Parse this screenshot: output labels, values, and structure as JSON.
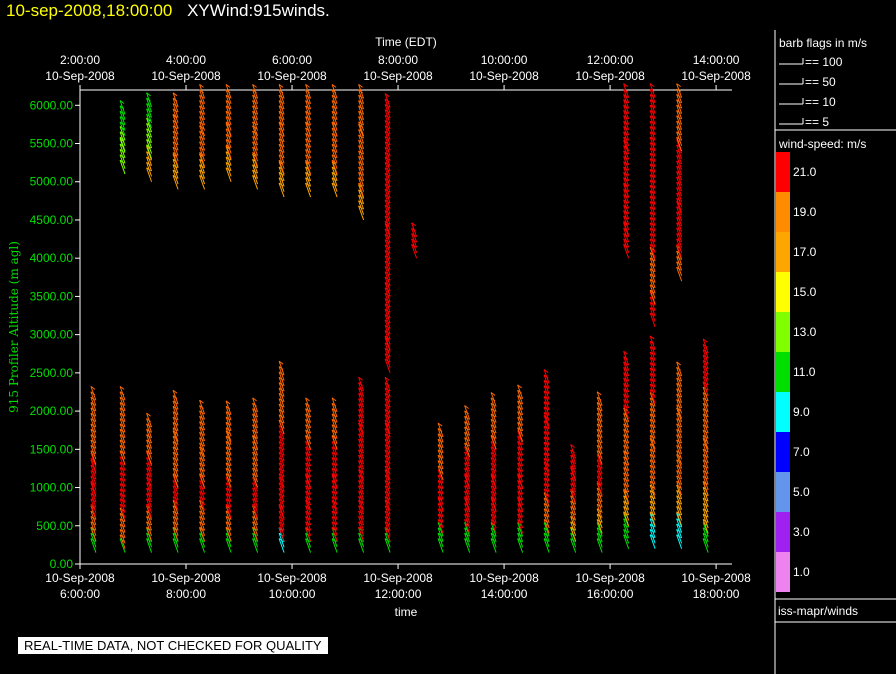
{
  "header": {
    "timestamp": "10-sep-2008,18:00:00",
    "plot_name": "XYWind:915winds."
  },
  "notice": "REAL-TIME DATA, NOT CHECKED FOR QUALITY",
  "legend": {
    "barb_title": "barb flags in m/s",
    "barb_flags": [
      "== 100",
      "== 50",
      "== 10",
      "== 5"
    ],
    "speed_title": "wind-speed: m/s",
    "speed_labels": [
      "21.0",
      "19.0",
      "17.0",
      "15.0",
      "13.0",
      "11.0",
      "9.0",
      "7.0",
      "5.0",
      "3.0",
      "1.0"
    ],
    "speed_colors": [
      "#ff0000",
      "#ff8c00",
      "#ffa500",
      "#ffff00",
      "#7fff00",
      "#00e000",
      "#00ffff",
      "#0000ff",
      "#6495ed",
      "#a020f0",
      "#ee82ee"
    ],
    "footer": "iss-mapr/winds"
  },
  "chart_data": {
    "type": "scatter",
    "title": "",
    "xlabel_top": "Time (EDT)",
    "xlabel_bottom": "time",
    "ylabel": "915 Profiler Altitude (m agl)",
    "ylim": [
      0,
      6200
    ],
    "yticks": [
      "0.00",
      "500.00",
      "1000.00",
      "1500.00",
      "2000.00",
      "2500.00",
      "3000.00",
      "3500.00",
      "4000.00",
      "4500.00",
      "5000.00",
      "5500.00",
      "6000.00"
    ],
    "xticks_bottom": [
      {
        "date": "10-Sep-2008",
        "time": "6:00:00"
      },
      {
        "date": "10-Sep-2008",
        "time": "8:00:00"
      },
      {
        "date": "10-Sep-2008",
        "time": "10:00:00"
      },
      {
        "date": "10-Sep-2008",
        "time": "12:00:00"
      },
      {
        "date": "10-Sep-2008",
        "time": "14:00:00"
      },
      {
        "date": "10-Sep-2008",
        "time": "16:00:00"
      },
      {
        "date": "10-Sep-2008",
        "time": "18:00:00"
      }
    ],
    "xticks_top": [
      {
        "time": "2:00:00",
        "date": "10-Sep-2008"
      },
      {
        "time": "4:00:00",
        "date": "10-Sep-2008"
      },
      {
        "time": "6:00:00",
        "date": "10-Sep-2008"
      },
      {
        "time": "8:00:00",
        "date": "10-Sep-2008"
      },
      {
        "time": "10:00:00",
        "date": "10-Sep-2008"
      },
      {
        "time": "12:00:00",
        "date": "10-Sep-2008"
      },
      {
        "time": "14:00:00",
        "date": "10-Sep-2008"
      }
    ],
    "series": [
      {
        "time_hr": 6.3,
        "lo": [
          [
            "260",
            2200,
            19
          ],
          [
            "60",
            1300,
            21
          ],
          [
            "100",
            1200,
            21
          ],
          [
            "100",
            900,
            21
          ],
          [
            "100",
            600,
            19
          ],
          [
            "100",
            300,
            11
          ]
        ],
        "upper": []
      },
      {
        "time_hr": 6.85,
        "lo": [
          [
            "260",
            2200,
            19
          ],
          [
            "60",
            1300,
            21
          ],
          [
            "100",
            800,
            21
          ],
          [
            "100",
            600,
            19
          ],
          [
            "100",
            200,
            11
          ]
        ],
        "upper": [
          [
            "0",
            5900,
            11
          ],
          [
            "100",
            5600,
            13
          ],
          [
            "100",
            5400,
            13
          ]
        ]
      },
      {
        "time_hr": 7.35,
        "lo": [
          [
            "260",
            1800,
            19
          ],
          [
            "60",
            1300,
            21
          ],
          [
            "100",
            1000,
            21
          ],
          [
            "100",
            600,
            19
          ],
          [
            "100",
            300,
            11
          ]
        ],
        "upper": [
          [
            "0",
            6000,
            11
          ],
          [
            "100",
            5700,
            13
          ],
          [
            "100",
            5300,
            17
          ]
        ]
      },
      {
        "time_hr": 7.85,
        "lo": [
          [
            "260",
            2100,
            19
          ],
          [
            "60",
            1600,
            19
          ],
          [
            "100",
            1000,
            21
          ],
          [
            "100",
            700,
            19
          ],
          [
            "100",
            300,
            11
          ]
        ],
        "upper": [
          [
            "0",
            6000,
            19
          ],
          [
            "100",
            5700,
            19
          ],
          [
            "100",
            5200,
            17
          ]
        ]
      },
      {
        "time_hr": 8.35,
        "lo": [
          [
            "260",
            2000,
            19
          ],
          [
            "60",
            1400,
            19
          ],
          [
            "100",
            1000,
            21
          ],
          [
            "100",
            700,
            19
          ],
          [
            "100",
            300,
            11
          ]
        ],
        "upper": [
          [
            "0",
            6100,
            19
          ],
          [
            "100",
            5600,
            19
          ],
          [
            "100",
            5200,
            17
          ]
        ]
      },
      {
        "time_hr": 8.85,
        "lo": [
          [
            "260",
            2000,
            19
          ],
          [
            "60",
            1600,
            19
          ],
          [
            "100",
            1000,
            21
          ],
          [
            "100",
            600,
            19
          ],
          [
            "100",
            300,
            11
          ]
        ],
        "upper": [
          [
            "0",
            6100,
            19
          ],
          [
            "100",
            5600,
            19
          ],
          [
            "100",
            5300,
            17
          ]
        ]
      },
      {
        "time_hr": 9.35,
        "lo": [
          [
            "260",
            2000,
            19
          ],
          [
            "60",
            1500,
            19
          ],
          [
            "100",
            1000,
            21
          ],
          [
            "100",
            600,
            19
          ],
          [
            "100",
            300,
            11
          ]
        ],
        "upper": [
          [
            "0",
            6100,
            19
          ],
          [
            "100",
            5600,
            19
          ],
          [
            "100",
            5200,
            17
          ]
        ]
      },
      {
        "time_hr": 9.85,
        "lo": [
          [
            "260",
            2500,
            19
          ],
          [
            "60",
            1700,
            21
          ],
          [
            "100",
            1000,
            21
          ],
          [
            "100",
            600,
            21
          ],
          [
            "100",
            300,
            9
          ]
        ],
        "upper": [
          [
            "0",
            6100,
            19
          ],
          [
            "100",
            5600,
            19
          ],
          [
            "100",
            5100,
            17
          ]
        ]
      },
      {
        "time_hr": 10.35,
        "lo": [
          [
            "260",
            2000,
            19
          ],
          [
            "60",
            1500,
            21
          ],
          [
            "100",
            1000,
            21
          ],
          [
            "100",
            700,
            21
          ],
          [
            "100",
            300,
            11
          ]
        ],
        "upper": [
          [
            "0",
            6100,
            19
          ],
          [
            "100",
            5600,
            19
          ],
          [
            "100",
            5100,
            17
          ]
        ]
      },
      {
        "time_hr": 10.85,
        "lo": [
          [
            "260",
            2000,
            19
          ],
          [
            "60",
            1500,
            21
          ],
          [
            "100",
            1000,
            21
          ],
          [
            "100",
            700,
            21
          ],
          [
            "100",
            300,
            11
          ]
        ],
        "upper": [
          [
            "0",
            6100,
            19
          ],
          [
            "100",
            5600,
            19
          ],
          [
            "100",
            5100,
            17
          ]
        ]
      },
      {
        "time_hr": 11.35,
        "lo": [
          [
            "260",
            2300,
            21
          ],
          [
            "60",
            1700,
            21
          ],
          [
            "100",
            1100,
            21
          ],
          [
            "100",
            700,
            21
          ],
          [
            "100",
            300,
            11
          ]
        ],
        "upper": [
          [
            "0",
            6100,
            19
          ],
          [
            "100",
            5600,
            19
          ],
          [
            "100",
            4800,
            17
          ]
        ]
      },
      {
        "time_hr": 11.85,
        "lo": [
          [
            "260",
            2300,
            21
          ],
          [
            "60",
            1700,
            21
          ],
          [
            "100",
            1100,
            21
          ],
          [
            "100",
            700,
            21
          ],
          [
            "100",
            300,
            11
          ]
        ],
        "upper": [
          [
            "0",
            6000,
            21
          ],
          [
            "100",
            5200,
            21
          ],
          [
            "100",
            4300,
            21
          ],
          [
            "100",
            3500,
            21
          ],
          [
            "100",
            2800,
            21
          ]
        ]
      },
      {
        "time_hr": 12.35,
        "lo": [],
        "upper": [
          [
            "0",
            4300,
            21
          ]
        ]
      },
      {
        "time_hr": 12.85,
        "lo": [
          [
            "260",
            1700,
            19
          ],
          [
            "60",
            1100,
            21
          ],
          [
            "100",
            700,
            21
          ],
          [
            "100",
            400,
            11
          ]
        ],
        "upper": []
      },
      {
        "time_hr": 13.35,
        "lo": [
          [
            "260",
            1900,
            19
          ],
          [
            "60",
            1400,
            21
          ],
          [
            "100",
            1000,
            21
          ],
          [
            "100",
            700,
            21
          ],
          [
            "100",
            400,
            11
          ]
        ],
        "upper": []
      },
      {
        "time_hr": 13.85,
        "lo": [
          [
            "260",
            2100,
            19
          ],
          [
            "60",
            1500,
            21
          ],
          [
            "100",
            1000,
            21
          ],
          [
            "100",
            700,
            21
          ],
          [
            "100",
            400,
            11
          ]
        ],
        "upper": []
      },
      {
        "time_hr": 14.35,
        "lo": [
          [
            "260",
            2200,
            19
          ],
          [
            "60",
            1600,
            21
          ],
          [
            "100",
            1000,
            21
          ],
          [
            "100",
            700,
            21
          ],
          [
            "100",
            400,
            11
          ]
        ],
        "upper": []
      },
      {
        "time_hr": 14.85,
        "lo": [
          [
            "260",
            2400,
            21
          ],
          [
            "60",
            1800,
            21
          ],
          [
            "100",
            1200,
            21
          ],
          [
            "100",
            800,
            19
          ],
          [
            "100",
            400,
            11
          ]
        ],
        "upper": []
      },
      {
        "time_hr": 15.35,
        "lo": [
          [
            "260",
            1400,
            21
          ],
          [
            "60",
            1100,
            21
          ],
          [
            "100",
            800,
            19
          ],
          [
            "100",
            500,
            17
          ],
          [
            "100",
            300,
            11
          ]
        ],
        "upper": []
      },
      {
        "time_hr": 15.85,
        "lo": [
          [
            "260",
            2100,
            19
          ],
          [
            "60",
            1300,
            21
          ],
          [
            "100",
            900,
            19
          ],
          [
            "100",
            600,
            17
          ],
          [
            "100",
            400,
            11
          ]
        ],
        "upper": []
      },
      {
        "time_hr": 16.35,
        "lo": [
          [
            "260",
            2600,
            21
          ],
          [
            "60",
            1900,
            19
          ],
          [
            "100",
            1300,
            19
          ],
          [
            "100",
            800,
            17
          ],
          [
            "100",
            500,
            11
          ]
        ],
        "upper": [
          [
            "0",
            6100,
            21
          ],
          [
            "100",
            5400,
            21
          ],
          [
            "100",
            4800,
            21
          ],
          [
            "100",
            4300,
            21
          ]
        ]
      },
      {
        "time_hr": 16.85,
        "lo": [
          [
            "260",
            2800,
            21
          ],
          [
            "60",
            2100,
            19
          ],
          [
            "100",
            1500,
            19
          ],
          [
            "100",
            900,
            17
          ],
          [
            "100",
            500,
            9
          ]
        ],
        "upper": [
          [
            "0",
            6100,
            21
          ],
          [
            "100",
            5400,
            21
          ],
          [
            "100",
            4700,
            21
          ],
          [
            "100",
            4000,
            19
          ],
          [
            "100",
            3400,
            21
          ]
        ]
      },
      {
        "time_hr": 17.35,
        "lo": [
          [
            "260",
            2500,
            19
          ],
          [
            "60",
            1900,
            19
          ],
          [
            "100",
            1300,
            19
          ],
          [
            "100",
            900,
            17
          ],
          [
            "100",
            500,
            9
          ]
        ],
        "upper": [
          [
            "0",
            6100,
            19
          ],
          [
            "100",
            5400,
            21
          ],
          [
            "100",
            4600,
            21
          ],
          [
            "100",
            4000,
            19
          ]
        ]
      },
      {
        "time_hr": 17.85,
        "lo": [
          [
            "260",
            2800,
            21
          ],
          [
            "60",
            2200,
            19
          ],
          [
            "100",
            1500,
            19
          ],
          [
            "100",
            900,
            17
          ],
          [
            "100",
            400,
            11
          ]
        ],
        "upper": []
      }
    ]
  }
}
